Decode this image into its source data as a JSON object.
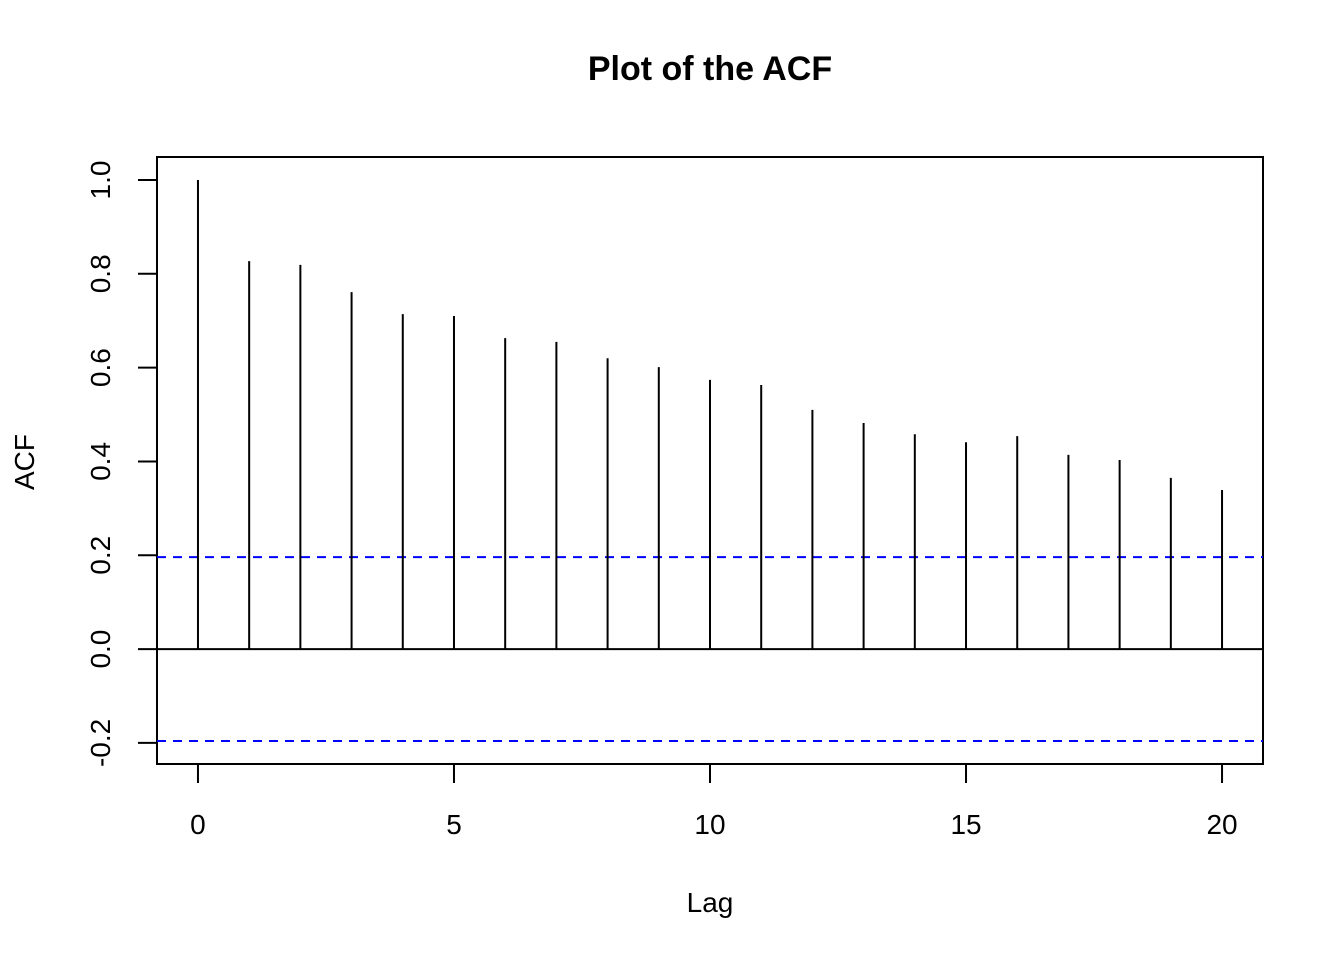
{
  "chart_data": {
    "type": "bar",
    "title": "Plot of the ACF",
    "x_label": "Lag",
    "y_label": "ACF",
    "x": [
      0,
      1,
      2,
      3,
      4,
      5,
      6,
      7,
      8,
      9,
      10,
      11,
      12,
      13,
      14,
      15,
      16,
      17,
      18,
      19,
      20
    ],
    "values": [
      1.0,
      0.827,
      0.819,
      0.761,
      0.714,
      0.71,
      0.663,
      0.655,
      0.62,
      0.601,
      0.574,
      0.563,
      0.51,
      0.482,
      0.458,
      0.441,
      0.454,
      0.414,
      0.403,
      0.365,
      0.339
    ],
    "color": "#000000",
    "xlim": [
      -0.8,
      20.8
    ],
    "xticks": [
      0,
      5,
      10,
      15,
      20
    ],
    "ylim": [
      -0.245,
      1.049
    ],
    "yticks": [
      {
        "value": -0.2,
        "label": "-0.2"
      },
      {
        "value": 0,
        "label": "0.0"
      },
      0.2,
      0.4,
      0.6,
      0.8,
      {
        "value": 1,
        "label": "1.0"
      }
    ],
    "ci_limit": 0.196,
    "ci_color": "#0000ff"
  }
}
